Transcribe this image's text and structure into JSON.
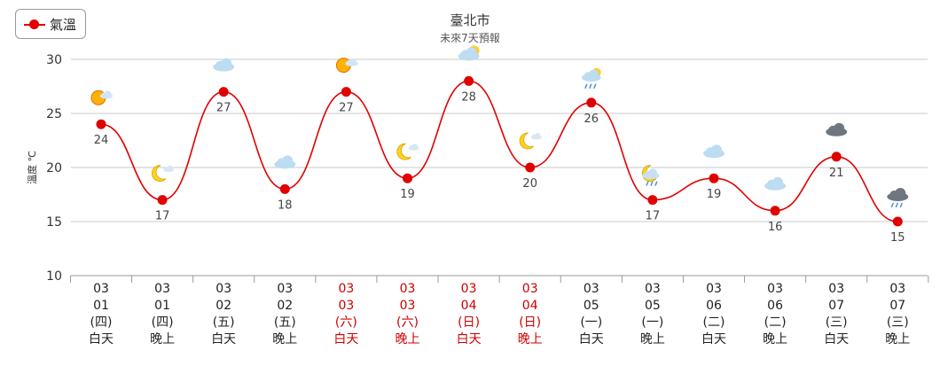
{
  "legend": {
    "label": "氣溫"
  },
  "chart_data": {
    "type": "line",
    "title": "臺北市",
    "subtitle": "未來7天預報",
    "ylabel": "溫度 ℃",
    "ylim": [
      10,
      30
    ],
    "yticks": [
      10,
      15,
      20,
      25,
      30
    ],
    "grid": true,
    "legend_position": "top-left",
    "series": [
      {
        "name": "氣溫",
        "color": "#e00000",
        "values": [
          24,
          17,
          27,
          18,
          27,
          19,
          28,
          20,
          26,
          17,
          19,
          16,
          21,
          15
        ]
      }
    ],
    "categories": [
      {
        "month": "03",
        "day": "01",
        "weekday": "(四)",
        "period": "白天",
        "weekend": false,
        "icon": "sunny-cloudy-icon"
      },
      {
        "month": "03",
        "day": "01",
        "weekday": "(四)",
        "period": "晚上",
        "weekend": false,
        "icon": "moon-cloudy-icon"
      },
      {
        "month": "03",
        "day": "02",
        "weekday": "(五)",
        "period": "白天",
        "weekend": false,
        "icon": "cloudy-icon"
      },
      {
        "month": "03",
        "day": "02",
        "weekday": "(五)",
        "period": "晚上",
        "weekend": false,
        "icon": "cloudy-icon"
      },
      {
        "month": "03",
        "day": "03",
        "weekday": "(六)",
        "period": "白天",
        "weekend": true,
        "icon": "sunny-cloudy-icon"
      },
      {
        "month": "03",
        "day": "03",
        "weekday": "(六)",
        "period": "晚上",
        "weekend": true,
        "icon": "moon-cloudy-icon"
      },
      {
        "month": "03",
        "day": "04",
        "weekday": "(日)",
        "period": "白天",
        "weekend": true,
        "icon": "cloudy-sunny-icon"
      },
      {
        "month": "03",
        "day": "04",
        "weekday": "(日)",
        "period": "晚上",
        "weekend": true,
        "icon": "moon-cloudy-icon"
      },
      {
        "month": "03",
        "day": "05",
        "weekday": "(一)",
        "period": "白天",
        "weekend": false,
        "icon": "cloudy-rain-sun-icon"
      },
      {
        "month": "03",
        "day": "05",
        "weekday": "(一)",
        "period": "晚上",
        "weekend": false,
        "icon": "cloudy-rain-moon-icon"
      },
      {
        "month": "03",
        "day": "06",
        "weekday": "(二)",
        "period": "白天",
        "weekend": false,
        "icon": "cloudy-icon"
      },
      {
        "month": "03",
        "day": "06",
        "weekday": "(二)",
        "period": "晚上",
        "weekend": false,
        "icon": "cloudy-icon"
      },
      {
        "month": "03",
        "day": "07",
        "weekday": "(三)",
        "period": "白天",
        "weekend": false,
        "icon": "dark-cloudy-icon"
      },
      {
        "month": "03",
        "day": "07",
        "weekday": "(三)",
        "period": "晚上",
        "weekend": false,
        "icon": "dark-cloudy-rain-icon"
      }
    ],
    "colors": {
      "weekday_text": "#222222",
      "weekend_text": "#cc0000",
      "grid": "#c8c8c8",
      "axis_text": "#333333"
    }
  }
}
